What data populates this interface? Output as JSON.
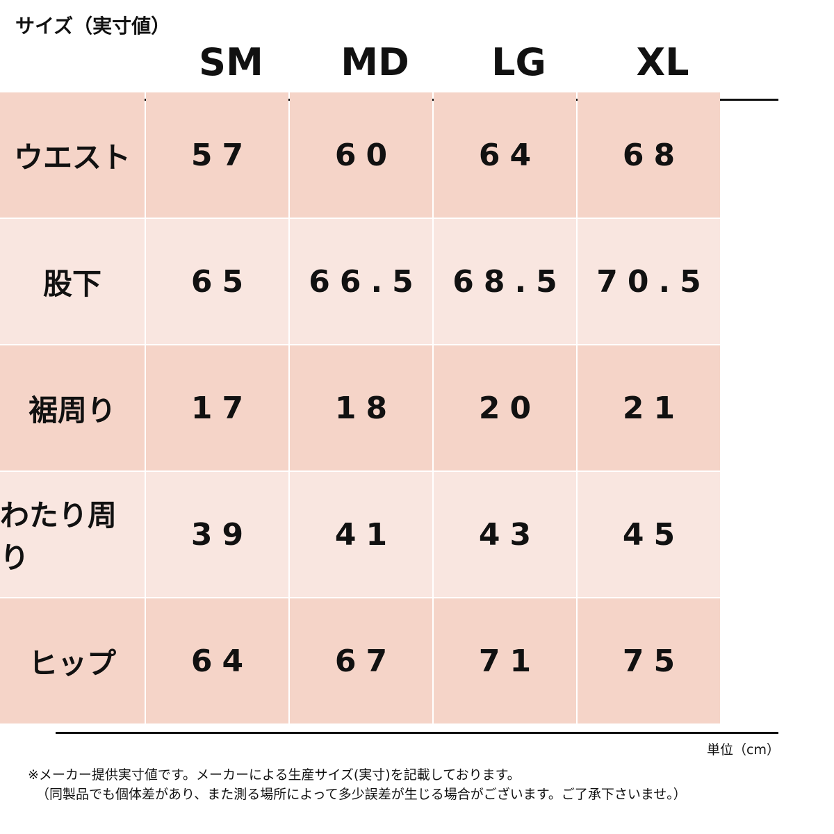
{
  "title": "サイズ（実寸値）",
  "table": {
    "columns": [
      "SM",
      "MD",
      "LG",
      "XL"
    ],
    "rows": [
      {
        "label": "ウエスト",
        "values": [
          "57",
          "60",
          "64",
          "68"
        ]
      },
      {
        "label": "股下",
        "values": [
          "65",
          "66.5",
          "68.5",
          "70.5"
        ]
      },
      {
        "label": "裾周り",
        "values": [
          "17",
          "18",
          "20",
          "21"
        ]
      },
      {
        "label": "わたり周り",
        "values": [
          "39",
          "41",
          "43",
          "45"
        ]
      },
      {
        "label": "ヒップ",
        "values": [
          "64",
          "67",
          "71",
          "75"
        ]
      }
    ]
  },
  "unit": "単位（cm）",
  "notes": [
    "※メーカー提供実寸値です。メーカーによる生産サイズ(実寸)を記載しております。",
    "（同製品でも個体差があり、また測る場所によって多少誤差が生じる場合がございます。ご了承下さいませ。）"
  ]
}
